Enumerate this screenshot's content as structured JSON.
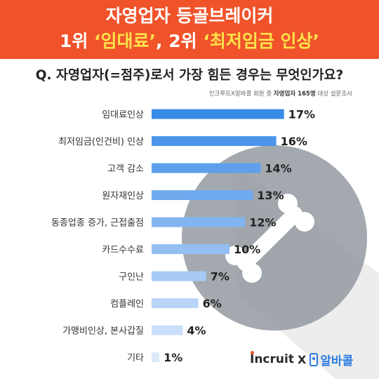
{
  "banner": {
    "line1": "자영업자 등골브레이커",
    "line2_part1": "1위 ",
    "line2_hl1": "‘임대료’",
    "line2_part2": ", 2위 ",
    "line2_hl2": "‘최저임금 인상’"
  },
  "question": "Q. 자영업자(=점주)로서 가장 힘든 경우는 무엇인가요?",
  "source": {
    "prefix": "인크루트X알바콜 회원 중 ",
    "bold": "자영업자 165명",
    "suffix": " 대상 설문조사"
  },
  "logo": {
    "incruit": "Incruit",
    "x": "X",
    "alba": "알바콜"
  },
  "colors": {
    "banner": "#f0532a",
    "highlight": "#ffe24a",
    "bar_dark": "#3a8be8",
    "bar_light": "#dce9fb",
    "watermark": "#8f969d"
  },
  "chart_data": {
    "type": "bar",
    "orientation": "horizontal",
    "categories": [
      "임대료인상",
      "최저임금(인건비) 인상",
      "고객 감소",
      "원자재인상",
      "동종업종 증가, 근접출점",
      "카드수수료",
      "구인난",
      "컴플레인",
      "가맹비인상, 본사갑질",
      "기타"
    ],
    "values": [
      17,
      16,
      14,
      13,
      12,
      10,
      7,
      6,
      4,
      1
    ],
    "value_labels": [
      "17%",
      "16%",
      "14%",
      "13%",
      "12%",
      "10%",
      "7%",
      "6%",
      "4%",
      "1%"
    ],
    "unit": "%",
    "xlim": [
      0,
      20
    ],
    "grid": false,
    "legend": "none"
  }
}
